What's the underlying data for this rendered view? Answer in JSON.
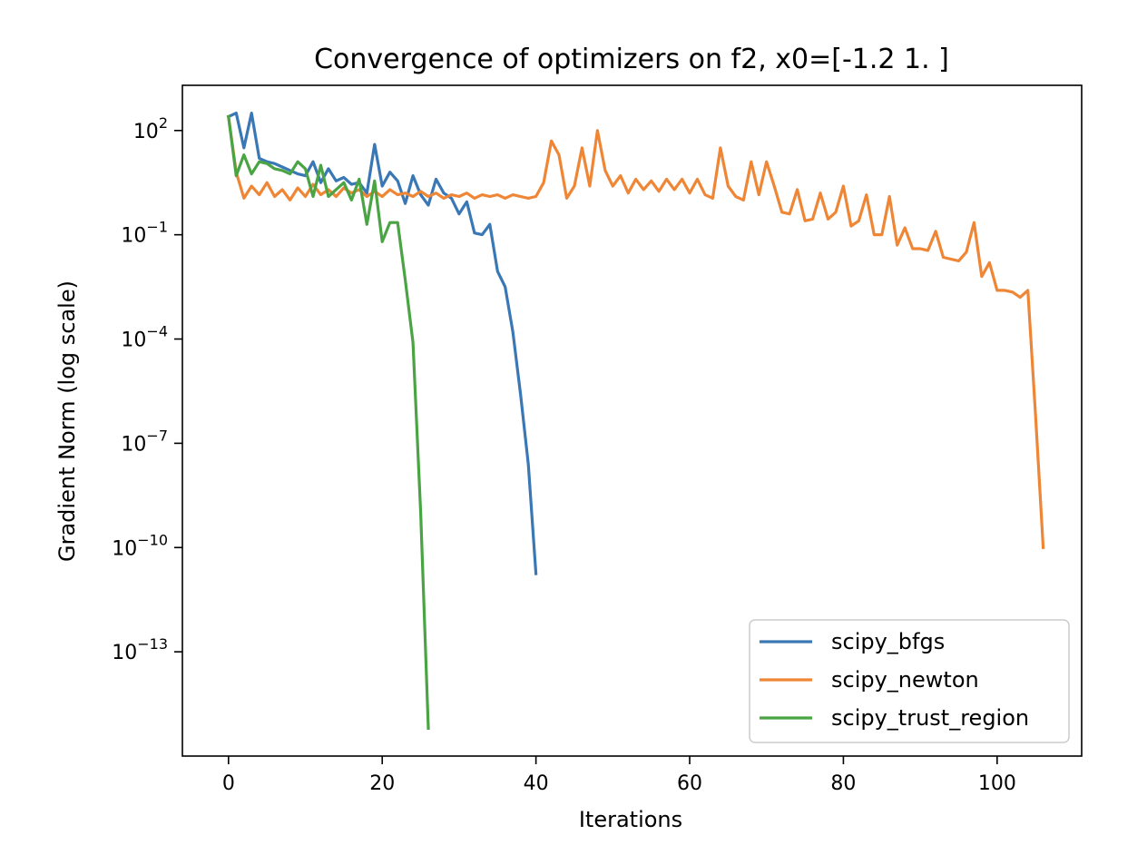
{
  "chart_data": {
    "type": "line",
    "title": "Convergence of optimizers on f2, x0=[-1.2  1. ]",
    "xlabel": "Iterations",
    "ylabel": "Gradient Norm (log scale)",
    "y_scale": "log",
    "xlim": [
      -6,
      111
    ],
    "ylim_log10": [
      -16.0,
      3.3
    ],
    "x_ticks": [
      0,
      20,
      40,
      60,
      80,
      100
    ],
    "x_tick_labels": [
      "0",
      "20",
      "40",
      "60",
      "80",
      "100"
    ],
    "y_tick_exponents": [
      2,
      -1,
      -4,
      -7,
      -10,
      -13
    ],
    "y_tick_base": "10",
    "y_tick_exp_labels": [
      "2",
      "−1",
      "−4",
      "−7",
      "−10",
      "−13"
    ],
    "grid": false,
    "legend_position": "lower right",
    "series": [
      {
        "name": "scipy_bfgs",
        "color": "#3a78b5",
        "x": [
          0,
          1,
          2,
          3,
          4,
          5,
          6,
          7,
          8,
          9,
          10,
          11,
          12,
          13,
          14,
          15,
          16,
          17,
          18,
          19,
          20,
          21,
          22,
          23,
          24,
          25,
          26,
          27,
          28,
          29,
          30,
          31,
          32,
          33,
          34,
          35,
          36,
          37,
          38,
          39,
          40
        ],
        "log10_y": [
          2.4,
          2.5,
          1.5,
          2.5,
          1.2,
          1.1,
          1.05,
          0.95,
          0.85,
          0.75,
          0.7,
          1.1,
          0.5,
          0.9,
          0.55,
          0.65,
          0.45,
          0.5,
          0.2,
          1.6,
          0.4,
          0.8,
          0.55,
          -0.1,
          0.7,
          0.15,
          -0.15,
          0.6,
          0.2,
          0.05,
          -0.4,
          -0.05,
          -0.95,
          -1.0,
          -0.7,
          -2.05,
          -2.5,
          -3.8,
          -5.6,
          -7.6,
          -10.75
        ]
      },
      {
        "name": "scipy_newton",
        "color": "#ef8636",
        "x": [
          0,
          1,
          2,
          3,
          4,
          5,
          6,
          7,
          8,
          9,
          10,
          11,
          12,
          13,
          14,
          15,
          16,
          17,
          18,
          19,
          20,
          21,
          22,
          23,
          24,
          25,
          26,
          27,
          28,
          29,
          30,
          31,
          32,
          33,
          34,
          35,
          36,
          37,
          38,
          39,
          40,
          41,
          42,
          43,
          44,
          45,
          46,
          47,
          48,
          49,
          50,
          51,
          52,
          53,
          54,
          55,
          56,
          57,
          58,
          59,
          60,
          61,
          62,
          63,
          64,
          65,
          66,
          67,
          68,
          69,
          70,
          71,
          72,
          73,
          74,
          75,
          76,
          77,
          78,
          79,
          80,
          81,
          82,
          83,
          84,
          85,
          86,
          87,
          88,
          89,
          90,
          91,
          92,
          93,
          94,
          95,
          96,
          97,
          98,
          99,
          100,
          101,
          102,
          103,
          104,
          105,
          106
        ],
        "log10_y": [
          2.4,
          0.8,
          0.05,
          0.4,
          0.15,
          0.5,
          0.1,
          0.3,
          0.0,
          0.35,
          0.1,
          0.45,
          0.15,
          0.3,
          0.1,
          0.35,
          0.2,
          0.3,
          0.1,
          0.25,
          0.1,
          0.3,
          0.15,
          0.2,
          0.1,
          0.25,
          0.1,
          0.2,
          0.05,
          0.15,
          0.1,
          0.2,
          0.05,
          0.15,
          0.1,
          0.15,
          0.05,
          0.15,
          0.1,
          0.05,
          0.1,
          0.5,
          1.7,
          1.3,
          0.05,
          0.4,
          1.5,
          0.4,
          2.0,
          0.85,
          0.4,
          0.7,
          0.2,
          0.6,
          0.3,
          0.55,
          0.25,
          0.6,
          0.3,
          0.6,
          0.2,
          0.6,
          0.15,
          0.05,
          1.5,
          0.4,
          0.1,
          0.0,
          1.1,
          0.15,
          1.1,
          0.4,
          -0.35,
          -0.4,
          0.3,
          -0.6,
          -0.55,
          0.2,
          -0.55,
          -0.35,
          0.4,
          -0.75,
          -0.6,
          0.15,
          -1.0,
          -1.0,
          0.1,
          -1.3,
          -0.8,
          -1.4,
          -1.4,
          -1.45,
          -0.9,
          -1.65,
          -1.7,
          -1.75,
          -1.5,
          -0.65,
          -2.2,
          -1.8,
          -2.6,
          -2.6,
          -2.65,
          -2.8,
          -2.6,
          -6.2,
          -10.0
        ]
      },
      {
        "name": "scipy_trust_region",
        "color": "#4aa444",
        "x": [
          0,
          1,
          2,
          3,
          4,
          5,
          6,
          7,
          8,
          9,
          10,
          11,
          12,
          13,
          14,
          15,
          16,
          17,
          18,
          19,
          20,
          21,
          22,
          23,
          24,
          25,
          26
        ],
        "log10_y": [
          2.4,
          0.7,
          1.3,
          0.75,
          1.1,
          1.05,
          0.9,
          0.85,
          0.75,
          1.1,
          0.9,
          0.1,
          1.0,
          0.1,
          0.3,
          0.5,
          0.0,
          0.6,
          -0.7,
          0.55,
          -1.2,
          -0.65,
          -0.65,
          -2.3,
          -4.1,
          -9.0,
          -15.2
        ]
      }
    ]
  }
}
